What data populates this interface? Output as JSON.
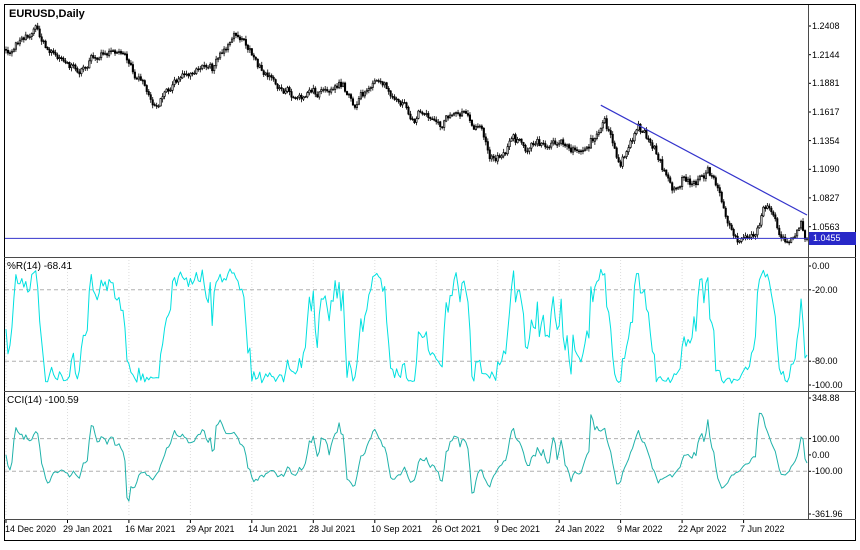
{
  "window": {
    "title": "EURUSD,Daily"
  },
  "colors": {
    "background": "#ffffff",
    "frame_border": "#000000",
    "separator": "#4a4a4a",
    "text": "#000000",
    "candle": "#000000",
    "candle_up_fill": "#ffffff",
    "wpr_line": "#00e0e0",
    "cci_line": "#20b2aa",
    "object_blue": "#3434cc",
    "price_box_bg": "#2828c8",
    "price_box_text": "#ffffff",
    "grid": "#dddddd",
    "level_line": "#b0b0b0"
  },
  "chart_data": {
    "type": "candlestick",
    "symbol": "EURUSD",
    "timeframe": "Daily",
    "bars_total": 405,
    "price_axis": {
      "min": 1.033,
      "max": 1.25,
      "ticks": [
        1.2408,
        1.2144,
        1.1881,
        1.1617,
        1.1354,
        1.109,
        1.0827,
        1.0563
      ],
      "current": "1.0455"
    },
    "time_axis": {
      "labels": [
        "14 Dec 2020",
        "29 Jan 2021",
        "16 Mar 2021",
        "29 Apr 2021",
        "14 Jun 2021",
        "28 Jul 2021",
        "10 Sep 2021",
        "26 Oct 2021",
        "9 Dec 2021",
        "24 Jan 2022",
        "9 Mar 2022",
        "22 Apr 2022",
        "7 Jun 2022"
      ],
      "label_every_bars": 31
    },
    "price_path": [
      [
        0,
        1.214
      ],
      [
        8,
        1.225
      ],
      [
        15,
        1.234
      ],
      [
        24,
        1.216
      ],
      [
        38,
        1.206
      ],
      [
        52,
        1.2235
      ],
      [
        60,
        1.208
      ],
      [
        76,
        1.172
      ],
      [
        88,
        1.19
      ],
      [
        97,
        1.212
      ],
      [
        104,
        1.202
      ],
      [
        115,
        1.225
      ],
      [
        123,
        1.218
      ],
      [
        132,
        1.188
      ],
      [
        140,
        1.1855
      ],
      [
        147,
        1.179
      ],
      [
        155,
        1.183
      ],
      [
        163,
        1.177
      ],
      [
        170,
        1.18
      ],
      [
        177,
        1.17
      ],
      [
        187,
        1.1885
      ],
      [
        196,
        1.181
      ],
      [
        206,
        1.1585
      ],
      [
        212,
        1.164
      ],
      [
        219,
        1.155
      ],
      [
        226,
        1.1665
      ],
      [
        233,
        1.16
      ],
      [
        240,
        1.145
      ],
      [
        245,
        1.125
      ],
      [
        250,
        1.122
      ],
      [
        256,
        1.133
      ],
      [
        262,
        1.126
      ],
      [
        268,
        1.134
      ],
      [
        274,
        1.128
      ],
      [
        281,
        1.136
      ],
      [
        287,
        1.13
      ],
      [
        295,
        1.144
      ],
      [
        302,
        1.148
      ],
      [
        310,
        1.113
      ],
      [
        317,
        1.144
      ],
      [
        319,
        1.148
      ],
      [
        327,
        1.128
      ],
      [
        332,
        1.108
      ],
      [
        336,
        1.087
      ],
      [
        341,
        1.101
      ],
      [
        347,
        1.098
      ],
      [
        354,
        1.106
      ],
      [
        360,
        1.083
      ],
      [
        364,
        1.056
      ],
      [
        369,
        1.04
      ],
      [
        373,
        1.052
      ],
      [
        378,
        1.06
      ],
      [
        382,
        1.078
      ],
      [
        386,
        1.069
      ],
      [
        391,
        1.041
      ],
      [
        394,
        1.037
      ],
      [
        398,
        1.048
      ],
      [
        401,
        1.058
      ],
      [
        404,
        1.0455
      ]
    ],
    "objects": {
      "hline": 1.0455,
      "trendline": {
        "from": [
          300,
          1.168
        ],
        "to": [
          404,
          1.067
        ]
      }
    },
    "indicators": [
      {
        "id": "wpr",
        "title": "%R(14)",
        "value": "-68.41",
        "period": 14,
        "axis": {
          "min": -100,
          "max": 0,
          "tick_values": [
            0,
            -20,
            -80,
            -100
          ],
          "levels": [
            -20,
            -80
          ]
        }
      },
      {
        "id": "cci",
        "title": "CCI(14)",
        "value": "-100.59",
        "period": 14,
        "axis": {
          "min": -361.96,
          "max": 348.88,
          "tick_values": [
            348.88,
            100,
            0,
            -100,
            -361.96
          ],
          "levels": [
            100,
            -100
          ]
        }
      }
    ]
  }
}
